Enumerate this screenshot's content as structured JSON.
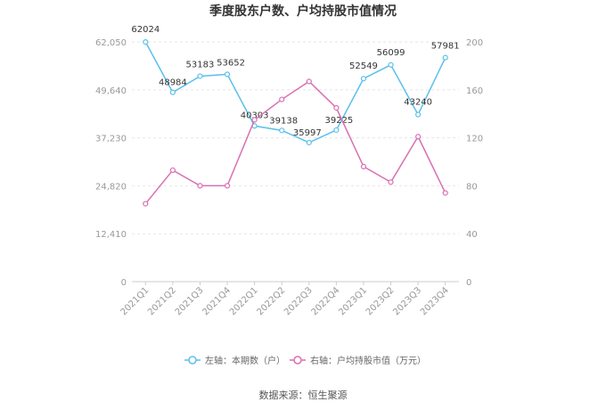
{
  "chart_data": {
    "type": "line",
    "title": "季度股东户数、户均持股市值情况",
    "categories": [
      "2021Q1",
      "2021Q2",
      "2021Q3",
      "2021Q4",
      "2022Q1",
      "2022Q2",
      "2022Q3",
      "2022Q4",
      "2023Q1",
      "2023Q2",
      "2023Q3",
      "2023Q4"
    ],
    "y_left": {
      "ylim": [
        0,
        62050
      ],
      "ticks": [
        "0",
        "12,410",
        "24,820",
        "37,230",
        "49,640",
        "62,050"
      ]
    },
    "y_right": {
      "ylim": [
        0,
        200
      ],
      "ticks": [
        "0",
        "40",
        "80",
        "120",
        "160",
        "200"
      ]
    },
    "series": [
      {
        "name": "左轴：本期数（户）",
        "axis": "left",
        "color": "#5bc0eb",
        "values": [
          62024,
          48984,
          53183,
          53652,
          40303,
          39138,
          35997,
          39225,
          52549,
          56099,
          43240,
          57981
        ],
        "labels": [
          "62024",
          "48984",
          "53183",
          "53652",
          "40303",
          "39138",
          "35997",
          "39225",
          "52549",
          "56099",
          "43240",
          "57981"
        ]
      },
      {
        "name": "右轴：户均持股市值（万元）",
        "axis": "right",
        "color": "#d96fb2",
        "values": [
          65,
          93,
          80,
          80,
          135,
          152,
          167,
          145,
          96,
          83,
          121,
          74
        ]
      }
    ],
    "legend_position": "bottom",
    "grid": true
  },
  "source": "数据来源：恒生聚源"
}
